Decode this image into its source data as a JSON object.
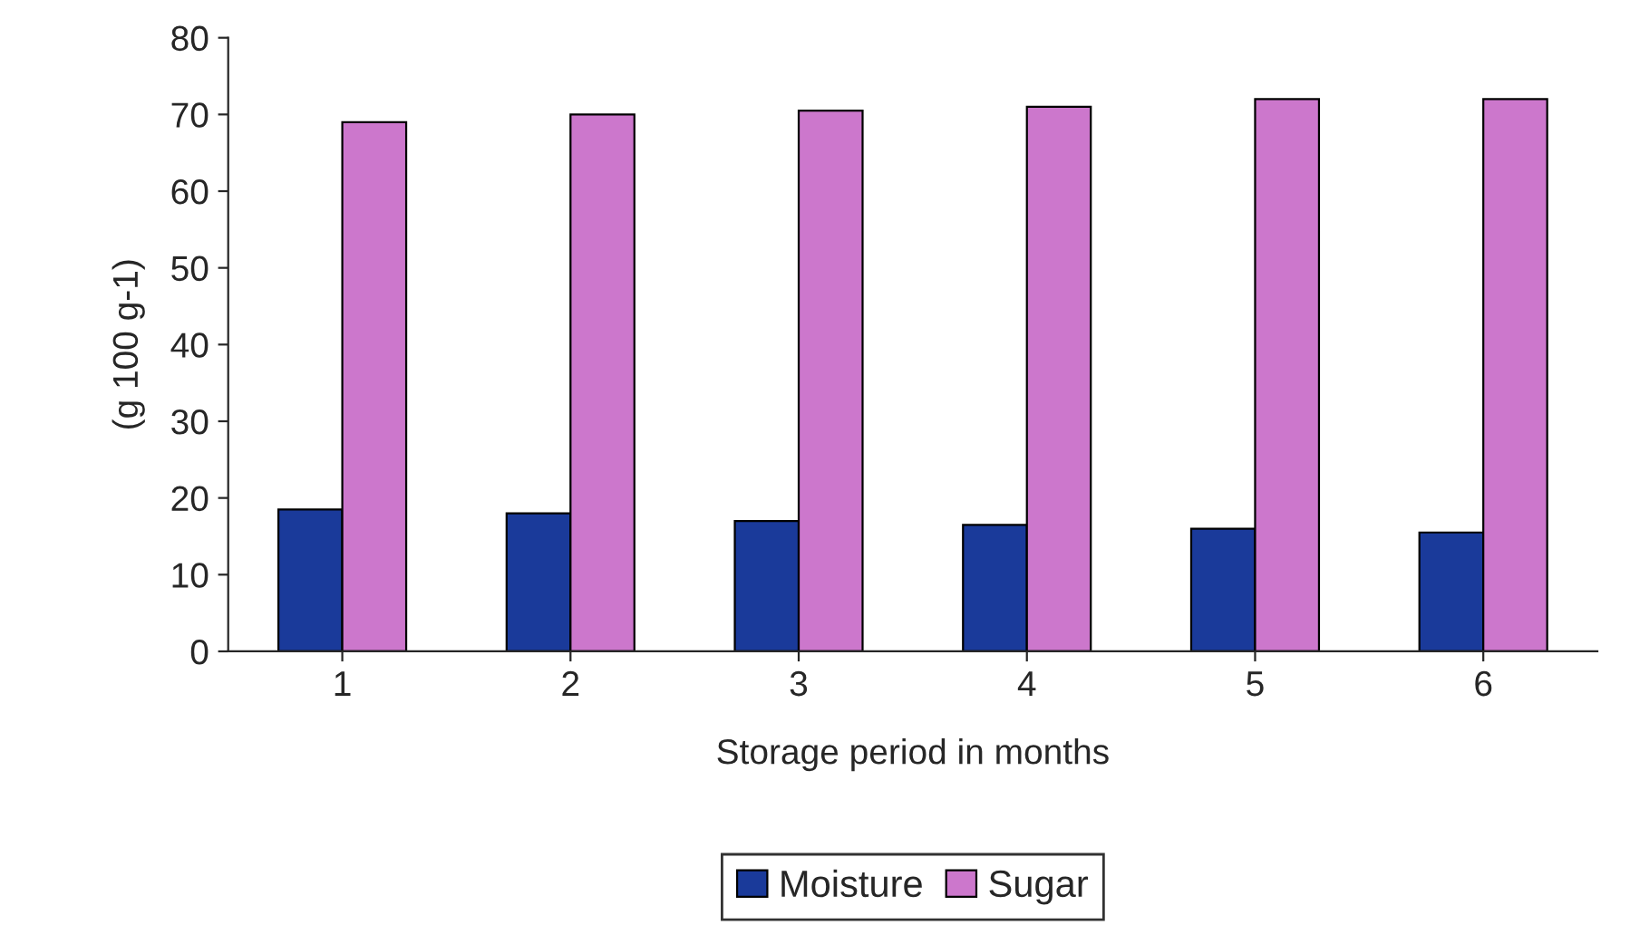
{
  "chart_data": {
    "type": "bar",
    "xlabel": "Storage period in months",
    "ylabel": "(g 100 g-1)",
    "categories": [
      "1",
      "2",
      "3",
      "4",
      "5",
      "6"
    ],
    "series": [
      {
        "name": "Moisture",
        "color": "#1a3a9a",
        "values": [
          18.5,
          18,
          17,
          16.5,
          16,
          15.5
        ]
      },
      {
        "name": "Sugar",
        "color": "#cc77cc",
        "values": [
          69,
          70,
          70.5,
          71,
          72,
          72
        ]
      }
    ],
    "ylim": [
      0,
      80
    ],
    "yticks": [
      0,
      10,
      20,
      30,
      40,
      50,
      60,
      70,
      80
    ],
    "grid": false,
    "legend": "bottom"
  }
}
